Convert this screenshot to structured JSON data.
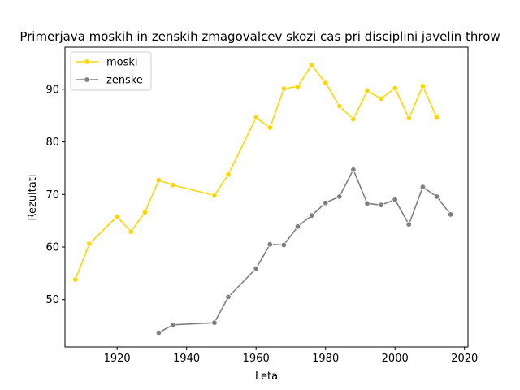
{
  "chart_data": {
    "type": "line",
    "title": "Primerjava moskih in zenskih zmagovalcev skozi cas pri disciplini javelin throw",
    "xlabel": "Leta",
    "ylabel": "Rezultati",
    "xlim": [
      1905,
      2021
    ],
    "ylim": [
      41,
      98
    ],
    "xticks": [
      1920,
      1940,
      1960,
      1980,
      2000,
      2020
    ],
    "yticks": [
      50,
      60,
      70,
      80,
      90
    ],
    "grid": false,
    "legend": "upper-left",
    "series": [
      {
        "name": "moski",
        "color": "#FFD700",
        "x": [
          1908,
          1912,
          1920,
          1924,
          1928,
          1932,
          1936,
          1948,
          1952,
          1960,
          1964,
          1968,
          1972,
          1976,
          1980,
          1984,
          1988,
          1992,
          1996,
          2000,
          2004,
          2008,
          2012
        ],
        "y": [
          53.8,
          60.6,
          65.8,
          62.9,
          66.6,
          72.7,
          71.8,
          69.8,
          73.8,
          84.6,
          82.7,
          90.1,
          90.5,
          94.6,
          91.2,
          86.8,
          84.3,
          89.7,
          88.2,
          90.2,
          84.5,
          90.6,
          84.6
        ]
      },
      {
        "name": "zenske",
        "color": "#808080",
        "x": [
          1932,
          1936,
          1948,
          1952,
          1960,
          1964,
          1968,
          1972,
          1976,
          1980,
          1984,
          1988,
          1992,
          1996,
          2000,
          2004,
          2008,
          2012,
          2016
        ],
        "y": [
          43.7,
          45.2,
          45.6,
          50.5,
          55.9,
          60.5,
          60.4,
          63.9,
          66.0,
          68.4,
          69.6,
          74.7,
          68.3,
          68.0,
          69.0,
          64.3,
          71.4,
          69.6,
          66.2
        ]
      }
    ]
  }
}
